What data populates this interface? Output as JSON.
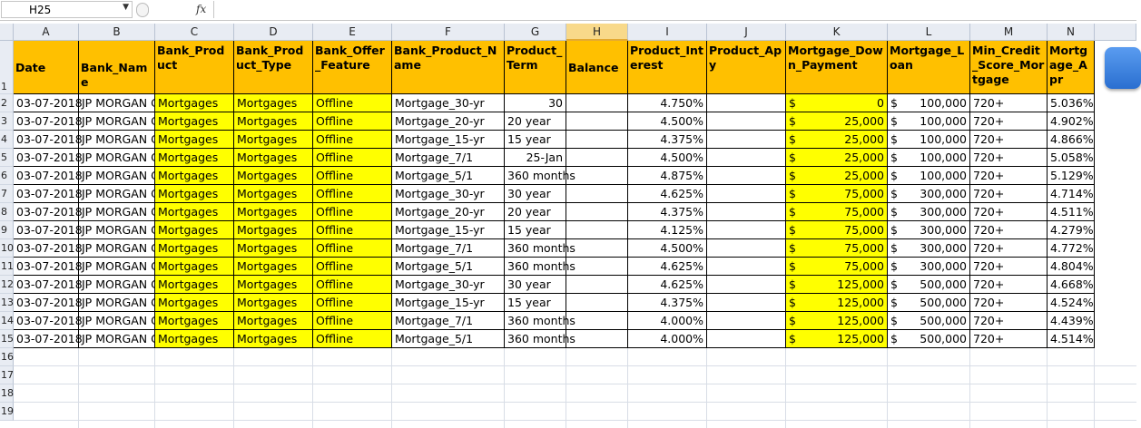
{
  "formula_bar": {
    "name_box": "H25",
    "fx": "fx",
    "formula": ""
  },
  "columns": [
    "A",
    "B",
    "C",
    "D",
    "E",
    "F",
    "G",
    "H",
    "I",
    "J",
    "K",
    "L",
    "M",
    "N"
  ],
  "row_numbers": [
    "1",
    "2",
    "3",
    "4",
    "5",
    "6",
    "7",
    "8",
    "9",
    "10",
    "11",
    "12",
    "13",
    "14",
    "15",
    "16",
    "17",
    "18",
    "19"
  ],
  "headers": [
    "Date",
    "Bank_Name",
    "Bank_Product",
    "Bank_Product_Type",
    "Bank_Offer_Feature",
    "Bank_Product_Name",
    "Product_Term",
    "Balance",
    "Product_Interest",
    "Product_Apy",
    "Mortgage_Down_Payment",
    "Mortgage_Loan",
    "Min_Credit_Score_Mortgage",
    "Mortgage_Apr"
  ],
  "rows": [
    [
      "03-07-2018",
      "JP MORGAN C",
      "Mortgages",
      "Mortgages",
      "Offline",
      "Mortgage_30-yr",
      "30",
      "",
      "4.750%",
      "",
      "0",
      "100,000",
      "720+",
      "5.036%"
    ],
    [
      "03-07-2018",
      "JP MORGAN C",
      "Mortgages",
      "Mortgages",
      "Offline",
      "Mortgage_20-yr",
      "20 year",
      "",
      "4.500%",
      "",
      "25,000",
      "100,000",
      "720+",
      "4.902%"
    ],
    [
      "03-07-2018",
      "JP MORGAN C",
      "Mortgages",
      "Mortgages",
      "Offline",
      "Mortgage_15-yr",
      "15 year",
      "",
      "4.375%",
      "",
      "25,000",
      "100,000",
      "720+",
      "4.866%"
    ],
    [
      "03-07-2018",
      "JP MORGAN C",
      "Mortgages",
      "Mortgages",
      "Offline",
      "Mortgage_7/1",
      "25-Jan",
      "",
      "4.500%",
      "",
      "25,000",
      "100,000",
      "720+",
      "5.058%"
    ],
    [
      "03-07-2018",
      "JP MORGAN C",
      "Mortgages",
      "Mortgages",
      "Offline",
      "Mortgage_5/1",
      "360 months",
      "",
      "4.875%",
      "",
      "25,000",
      "100,000",
      "720+",
      "5.129%"
    ],
    [
      "03-07-2018",
      "JP MORGAN C",
      "Mortgages",
      "Mortgages",
      "Offline",
      "Mortgage_30-yr",
      "30 year",
      "",
      "4.625%",
      "",
      "75,000",
      "300,000",
      "720+",
      "4.714%"
    ],
    [
      "03-07-2018",
      "JP MORGAN C",
      "Mortgages",
      "Mortgages",
      "Offline",
      "Mortgage_20-yr",
      "20 year",
      "",
      "4.375%",
      "",
      "75,000",
      "300,000",
      "720+",
      "4.511%"
    ],
    [
      "03-07-2018",
      "JP MORGAN C",
      "Mortgages",
      "Mortgages",
      "Offline",
      "Mortgage_15-yr",
      "15 year",
      "",
      "4.125%",
      "",
      "75,000",
      "300,000",
      "720+",
      "4.279%"
    ],
    [
      "03-07-2018",
      "JP MORGAN C",
      "Mortgages",
      "Mortgages",
      "Offline",
      "Mortgage_7/1",
      "360 months",
      "",
      "4.500%",
      "",
      "75,000",
      "300,000",
      "720+",
      "4.772%"
    ],
    [
      "03-07-2018",
      "JP MORGAN C",
      "Mortgages",
      "Mortgages",
      "Offline",
      "Mortgage_5/1",
      "360 months",
      "",
      "4.625%",
      "",
      "75,000",
      "300,000",
      "720+",
      "4.804%"
    ],
    [
      "03-07-2018",
      "JP MORGAN C",
      "Mortgages",
      "Mortgages",
      "Offline",
      "Mortgage_30-yr",
      "30 year",
      "",
      "4.625%",
      "",
      "125,000",
      "500,000",
      "720+",
      "4.668%"
    ],
    [
      "03-07-2018",
      "JP MORGAN C",
      "Mortgages",
      "Mortgages",
      "Offline",
      "Mortgage_15-yr",
      "15 year",
      "",
      "4.375%",
      "",
      "125,000",
      "500,000",
      "720+",
      "4.524%"
    ],
    [
      "03-07-2018",
      "JP MORGAN C",
      "Mortgages",
      "Mortgages",
      "Offline",
      "Mortgage_7/1",
      "360 months",
      "",
      "4.000%",
      "",
      "125,000",
      "500,000",
      "720+",
      "4.439%"
    ],
    [
      "03-07-2018",
      "JP MORGAN C",
      "Mortgages",
      "Mortgages",
      "Offline",
      "Mortgage_5/1",
      "360 months",
      "",
      "4.000%",
      "",
      "125,000",
      "500,000",
      "720+",
      "4.514%"
    ]
  ],
  "currency_symbol": "$",
  "colors": {
    "header_fill": "#ffc000",
    "highlight_fill": "#ffff00",
    "selected_col": "#f8d98a"
  }
}
